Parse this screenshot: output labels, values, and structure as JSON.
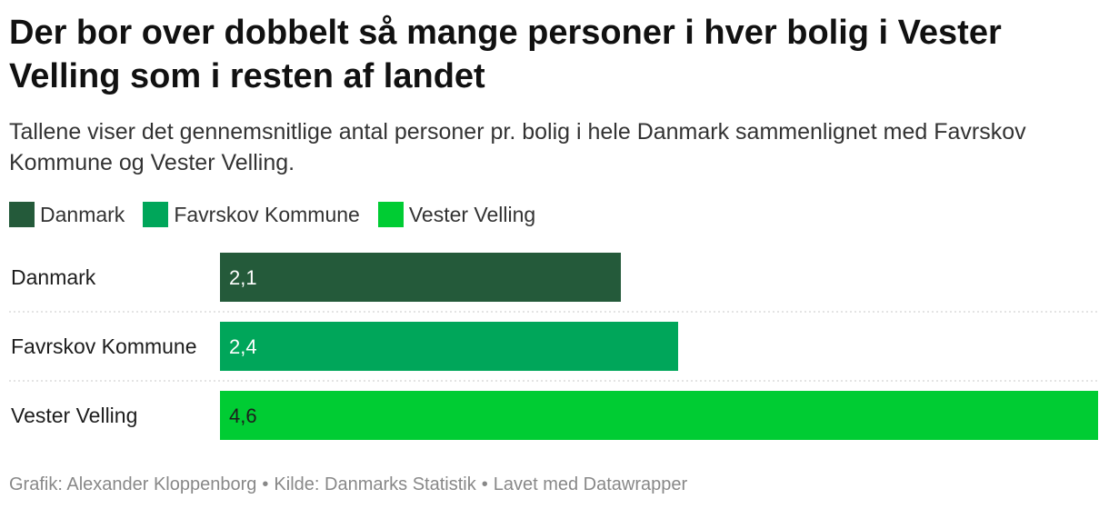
{
  "title": "Der bor over dobbelt så mange personer i hver bolig i Vester Velling som i resten af landet",
  "subtitle": "Tallene viser det gennemsnitlige antal personer pr. bolig i hele Danmark sammenlignet med Favrskov Kommune og Vester Velling.",
  "legend": [
    {
      "label": "Danmark",
      "color": "#245a3a"
    },
    {
      "label": "Favrskov Kommune",
      "color": "#00a65a"
    },
    {
      "label": "Vester Velling",
      "color": "#00cc33"
    }
  ],
  "chart_data": {
    "type": "bar",
    "orientation": "horizontal",
    "categories": [
      "Danmark",
      "Favrskov Kommune",
      "Vester Velling"
    ],
    "values": [
      2.1,
      2.4,
      4.6
    ],
    "value_labels": [
      "2,1",
      "2,4",
      "4,6"
    ],
    "colors": [
      "#245a3a",
      "#00a65a",
      "#00cc33"
    ],
    "label_colors": [
      "#ffffff",
      "#ffffff",
      "#1d1d1d"
    ],
    "xlim": [
      0,
      4.6
    ],
    "grid": false,
    "legend_position": "top-left"
  },
  "footer": {
    "credit": "Grafik: Alexander Kloppenborg",
    "source": "Kilde: Danmarks Statistik",
    "tool": "Lavet med Datawrapper",
    "separator": "•"
  }
}
